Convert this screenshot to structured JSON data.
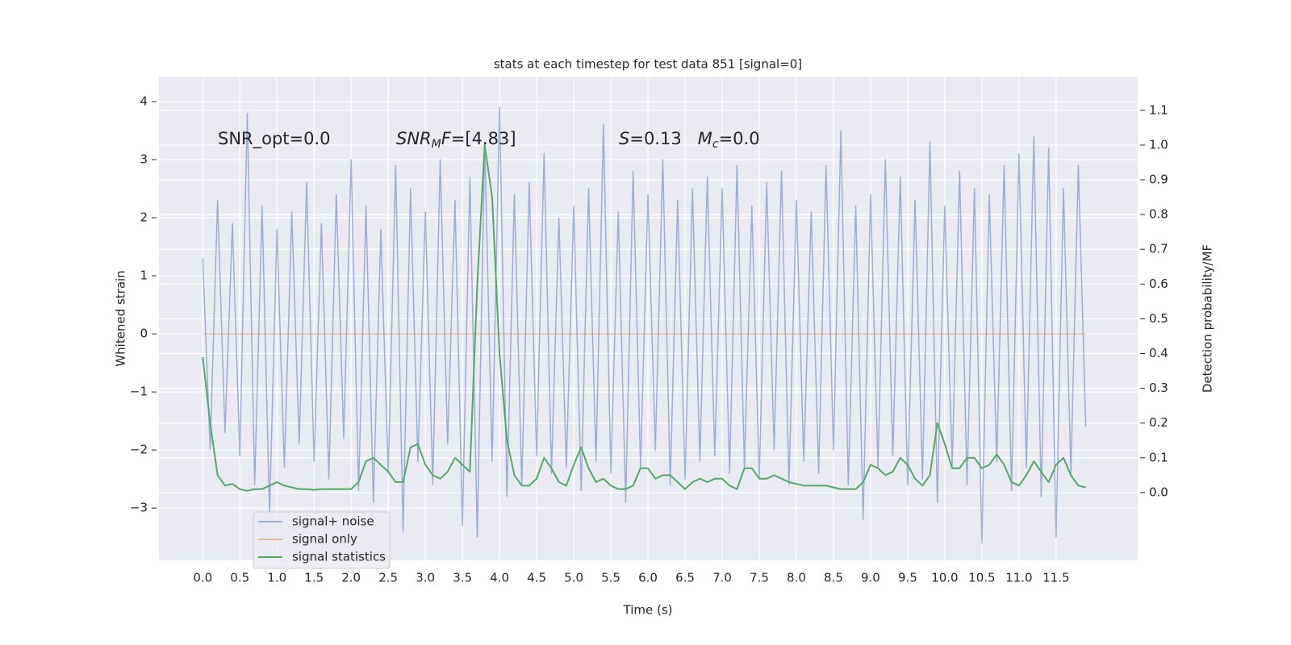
{
  "chart_data": {
    "type": "line",
    "title": "stats at each timestep for test data 851 [signal=0]",
    "xlabel": "Time (s)",
    "ylabel": "Whitened strain",
    "y2label": "Detection probability/MF",
    "annotations": [
      [
        {
          "text": "SNR_opt=0.0"
        }
      ],
      [
        {
          "text": "SNR",
          "italic": true
        },
        {
          "text": "M",
          "italic": true,
          "sub": true
        },
        {
          "text": "F",
          "italic": true
        },
        {
          "text": "=[4.83]"
        }
      ],
      [
        {
          "text": "S",
          "italic": true
        },
        {
          "text": "=0.13   "
        },
        {
          "text": "M",
          "italic": true
        },
        {
          "text": "c",
          "italic": true,
          "sub": true
        },
        {
          "text": "=0.0"
        }
      ]
    ],
    "x": [
      0,
      0.1,
      0.2,
      0.3,
      0.4,
      0.5,
      0.6,
      0.7,
      0.8,
      0.9,
      1,
      1.1,
      1.2,
      1.3,
      1.4,
      1.5,
      1.6,
      1.7,
      1.8,
      1.9,
      2,
      2.1,
      2.2,
      2.3,
      2.4,
      2.5,
      2.6,
      2.7,
      2.8,
      2.9,
      3,
      3.1,
      3.2,
      3.3,
      3.4,
      3.5,
      3.6,
      3.7,
      3.8,
      3.9,
      4,
      4.1,
      4.2,
      4.3,
      4.4,
      4.5,
      4.6,
      4.7,
      4.8,
      4.9,
      5,
      5.1,
      5.2,
      5.3,
      5.4,
      5.5,
      5.6,
      5.7,
      5.8,
      5.9,
      6,
      6.1,
      6.2,
      6.3,
      6.4,
      6.5,
      6.6,
      6.7,
      6.8,
      6.9,
      7,
      7.1,
      7.2,
      7.3,
      7.4,
      7.5,
      7.6,
      7.7,
      7.8,
      7.9,
      8,
      8.1,
      8.2,
      8.3,
      8.4,
      8.5,
      8.6,
      8.7,
      8.8,
      8.9,
      9,
      9.1,
      9.2,
      9.3,
      9.4,
      9.5,
      9.6,
      9.7,
      9.8,
      9.9,
      10,
      10.1,
      10.2,
      10.3,
      10.4,
      10.5,
      10.6,
      10.7,
      10.8,
      10.9,
      11,
      11.1,
      11.2,
      11.3,
      11.4,
      11.5,
      11.6,
      11.7,
      11.8,
      11.9
    ],
    "series": [
      {
        "name": "signal+ noise",
        "color": "#4c72b0",
        "opacity": 0.5,
        "axis": "y",
        "values": [
          1.3,
          -2.0,
          2.3,
          -1.7,
          1.9,
          -2.1,
          3.8,
          -2.6,
          2.2,
          -3.1,
          1.8,
          -2.3,
          2.1,
          -1.9,
          2.6,
          -2.2,
          1.9,
          -2.5,
          2.4,
          -1.8,
          3.0,
          -2.7,
          2.2,
          -2.9,
          1.8,
          -2.4,
          2.9,
          -3.4,
          2.5,
          -2.2,
          2.1,
          -2.6,
          3.0,
          -1.9,
          2.3,
          -3.3,
          2.7,
          -3.5,
          3.3,
          -2.2,
          3.9,
          -2.8,
          2.4,
          -2.6,
          2.6,
          -2.1,
          3.1,
          -2.4,
          2.0,
          -2.3,
          2.2,
          -2.7,
          2.5,
          -2.2,
          3.6,
          -2.4,
          2.1,
          -2.9,
          2.8,
          -2.3,
          2.4,
          -2.0,
          3.0,
          -2.6,
          2.3,
          -2.5,
          2.5,
          -2.2,
          2.7,
          -2.1,
          2.5,
          -2.4,
          2.9,
          -2.3,
          2.2,
          -2.5,
          2.6,
          -2.0,
          2.8,
          -2.6,
          2.3,
          -2.2,
          2.1,
          -2.4,
          2.9,
          -2.0,
          3.5,
          -2.6,
          2.2,
          -3.2,
          2.4,
          -2.3,
          3.0,
          -2.1,
          2.7,
          -2.6,
          2.3,
          -2.5,
          3.3,
          -2.9,
          2.2,
          -2.3,
          2.8,
          -2.6,
          2.5,
          -3.6,
          2.4,
          -2.2,
          2.9,
          -2.7,
          3.1,
          -2.3,
          3.4,
          -2.8,
          3.2,
          -3.5,
          2.5,
          -2.4,
          2.9,
          -1.6
        ]
      },
      {
        "name": "signal only",
        "color": "#dd8452",
        "opacity": 0.5,
        "axis": "y",
        "values": [
          0,
          0,
          0,
          0,
          0,
          0,
          0,
          0,
          0,
          0,
          0,
          0,
          0,
          0,
          0,
          0,
          0,
          0,
          0,
          0,
          0,
          0,
          0,
          0,
          0,
          0,
          0,
          0,
          0,
          0,
          0,
          0,
          0,
          0,
          0,
          0,
          0,
          0,
          0,
          0,
          0,
          0,
          0,
          0,
          0,
          0,
          0,
          0,
          0,
          0,
          0,
          0,
          0,
          0,
          0,
          0,
          0,
          0,
          0,
          0,
          0,
          0,
          0,
          0,
          0,
          0,
          0,
          0,
          0,
          0,
          0,
          0,
          0,
          0,
          0,
          0,
          0,
          0,
          0,
          0,
          0,
          0,
          0,
          0,
          0,
          0,
          0,
          0,
          0,
          0,
          0,
          0,
          0,
          0,
          0,
          0,
          0,
          0,
          0,
          0,
          0,
          0,
          0,
          0,
          0,
          0,
          0,
          0,
          0,
          0,
          0,
          0,
          0,
          0,
          0,
          0,
          0,
          0,
          0,
          0
        ]
      },
      {
        "name": "signal statistics",
        "color": "#55a868",
        "opacity": 1,
        "axis": "y2",
        "values": [
          0.39,
          0.2,
          0.05,
          0.02,
          0.025,
          0.01,
          0.005,
          0.01,
          0.01,
          0.02,
          0.03,
          0.02,
          0.015,
          0.01,
          0.01,
          0.008,
          0.01,
          0.01,
          0.01,
          0.01,
          0.01,
          0.03,
          0.09,
          0.1,
          0.08,
          0.06,
          0.03,
          0.03,
          0.13,
          0.14,
          0.08,
          0.05,
          0.04,
          0.06,
          0.1,
          0.08,
          0.06,
          0.6,
          1.0,
          0.85,
          0.4,
          0.15,
          0.05,
          0.02,
          0.02,
          0.04,
          0.1,
          0.07,
          0.03,
          0.02,
          0.08,
          0.13,
          0.07,
          0.03,
          0.04,
          0.02,
          0.01,
          0.01,
          0.02,
          0.07,
          0.07,
          0.04,
          0.05,
          0.05,
          0.03,
          0.01,
          0.03,
          0.04,
          0.03,
          0.04,
          0.04,
          0.02,
          0.01,
          0.07,
          0.07,
          0.04,
          0.04,
          0.05,
          0.04,
          0.03,
          0.025,
          0.02,
          0.02,
          0.02,
          0.02,
          0.015,
          0.01,
          0.01,
          0.01,
          0.03,
          0.08,
          0.07,
          0.05,
          0.06,
          0.1,
          0.08,
          0.04,
          0.02,
          0.05,
          0.2,
          0.14,
          0.07,
          0.07,
          0.1,
          0.1,
          0.07,
          0.08,
          0.11,
          0.08,
          0.03,
          0.02,
          0.05,
          0.09,
          0.06,
          0.03,
          0.08,
          0.1,
          0.05,
          0.02,
          0.015
        ]
      }
    ],
    "xlim": [
      -0.59,
      12.6
    ],
    "ylim": [
      -3.9,
      4.43
    ],
    "y2lim": [
      -0.195,
      1.197
    ],
    "xticks": [
      {
        "value": 0,
        "label": "0.0"
      },
      {
        "value": 0.5,
        "label": "0.5"
      },
      {
        "value": 1,
        "label": "1.0"
      },
      {
        "value": 1.5,
        "label": "1.5"
      },
      {
        "value": 2,
        "label": "2.0"
      },
      {
        "value": 2.5,
        "label": "2.5"
      },
      {
        "value": 3,
        "label": "3.0"
      },
      {
        "value": 3.5,
        "label": "3.5"
      },
      {
        "value": 4,
        "label": "4.0"
      },
      {
        "value": 4.5,
        "label": "4.5"
      },
      {
        "value": 5,
        "label": "5.0"
      },
      {
        "value": 5.5,
        "label": "5.5"
      },
      {
        "value": 6,
        "label": "6.0"
      },
      {
        "value": 6.5,
        "label": "6.5"
      },
      {
        "value": 7,
        "label": "7.0"
      },
      {
        "value": 7.5,
        "label": "7.5"
      },
      {
        "value": 8,
        "label": "8.0"
      },
      {
        "value": 8.5,
        "label": "8.5"
      },
      {
        "value": 9,
        "label": "9.0"
      },
      {
        "value": 9.5,
        "label": "9.5"
      },
      {
        "value": 10,
        "label": "10.0"
      },
      {
        "value": 10.5,
        "label": "10.5"
      },
      {
        "value": 11,
        "label": "11.0"
      },
      {
        "value": 11.5,
        "label": "11.5"
      }
    ],
    "yticks": [
      {
        "value": -3,
        "label": "−3"
      },
      {
        "value": -2,
        "label": "−2"
      },
      {
        "value": -1,
        "label": "−1"
      },
      0,
      1,
      2,
      3,
      4
    ],
    "y2ticks": [
      {
        "value": 0,
        "label": "0.0"
      },
      {
        "value": 0.1,
        "label": "0.1"
      },
      {
        "value": 0.2,
        "label": "0.2"
      },
      {
        "value": 0.3,
        "label": "0.3"
      },
      {
        "value": 0.4,
        "label": "0.4"
      },
      {
        "value": 0.5,
        "label": "0.5"
      },
      {
        "value": 0.6,
        "label": "0.6"
      },
      {
        "value": 0.7,
        "label": "0.7"
      },
      {
        "value": 0.8,
        "label": "0.8"
      },
      {
        "value": 0.9,
        "label": "0.9"
      },
      {
        "value": 1,
        "label": "1.0"
      },
      {
        "value": 1.1,
        "label": "1.1"
      }
    ],
    "grid": true,
    "background": "#eaeaf2",
    "legend": "lower left"
  }
}
